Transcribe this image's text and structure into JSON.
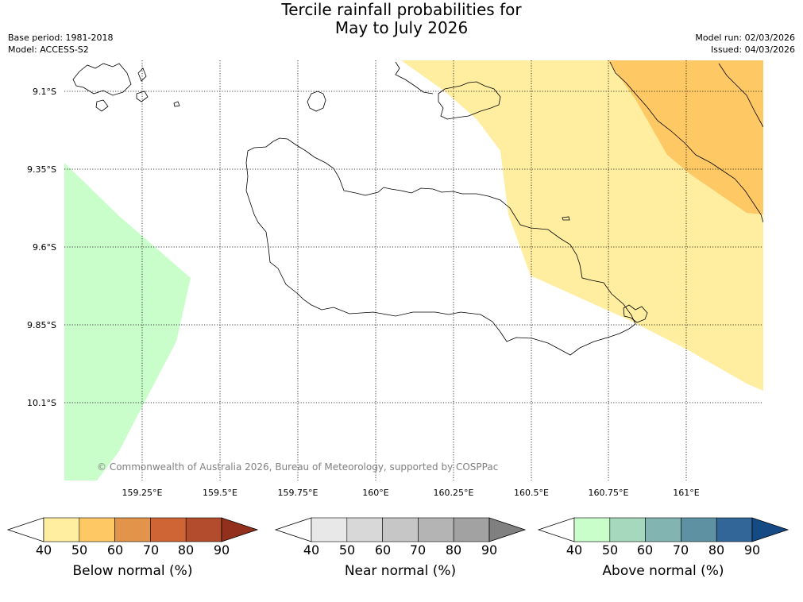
{
  "title": {
    "line1": "Tercile rainfall probabilities for",
    "line2": "May to July 2026"
  },
  "meta": {
    "base_period": "Base period: 1981-2018",
    "model": "Model: ACCESS-S2",
    "model_run": "Model run: 02/03/2026",
    "issued": "Issued: 04/03/2026"
  },
  "map": {
    "lat_labels": [
      "9.1°S",
      "9.35°S",
      "9.6°S",
      "9.85°S",
      "10.1°S"
    ],
    "lon_labels": [
      "159.25°E",
      "159.5°E",
      "159.75°E",
      "160°E",
      "160.25°E",
      "160.5°E",
      "160.75°E",
      "161°E"
    ],
    "copyright": "© Commonwealth of Australia 2026, Bureau of Meteorology, supported by COSPPac"
  },
  "colorbars": [
    {
      "label": "Below normal (%)",
      "ticks": [
        "40",
        "50",
        "60",
        "70",
        "80",
        "90"
      ],
      "colors": [
        "#ffffff",
        "#ffeda0",
        "#fec965",
        "#e2944a",
        "#cf6535",
        "#b34c2c",
        "#93301d"
      ]
    },
    {
      "label": "Near normal (%)",
      "ticks": [
        "40",
        "50",
        "60",
        "70",
        "80",
        "90"
      ],
      "colors": [
        "#ffffff",
        "#e8e8e8",
        "#d8d8d8",
        "#c6c6c6",
        "#b4b4b4",
        "#a2a2a2",
        "#808080"
      ]
    },
    {
      "label": "Above normal (%)",
      "ticks": [
        "40",
        "50",
        "60",
        "70",
        "80",
        "90"
      ],
      "colors": [
        "#ffffff",
        "#c9fdca",
        "#a5d8bc",
        "#82b5b1",
        "#5e92a2",
        "#336698",
        "#154b85"
      ]
    }
  ],
  "colors": {
    "below_50": "#ffeda0",
    "below_60": "#fec965",
    "above_50": "#c9fdca",
    "coast": "#000000",
    "grid": "#000000"
  }
}
